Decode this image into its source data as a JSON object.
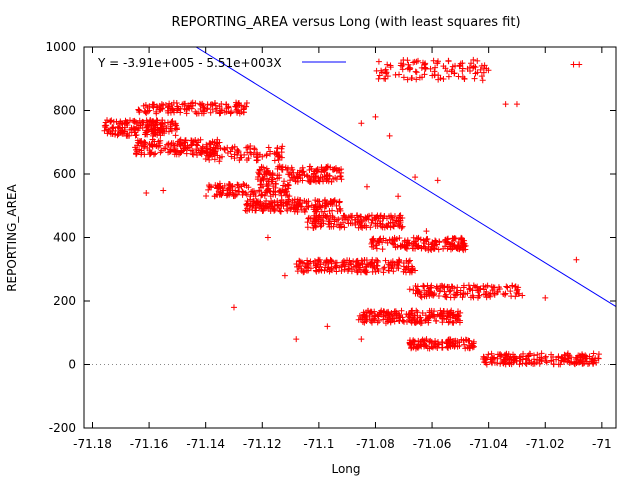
{
  "chart_data": {
    "type": "scatter",
    "title": "REPORTING_AREA versus Long (with least squares fit)",
    "xlabel": "Long",
    "ylabel": "REPORTING_AREA",
    "xlim": [
      -71.183,
      -70.995
    ],
    "ylim": [
      -200,
      1000
    ],
    "x_ticks": [
      -71.18,
      -71.16,
      -71.14,
      -71.12,
      -71.1,
      -71.08,
      -71.06,
      -71.04,
      -71.02,
      -71.0
    ],
    "x_tick_labels": [
      "-71.18",
      "-71.16",
      "-71.14",
      "-71.12",
      "-71.1",
      "-71.08",
      "-71.06",
      "-71.04",
      "-71.02",
      "-71"
    ],
    "y_ticks": [
      -200,
      0,
      200,
      400,
      600,
      800,
      1000
    ],
    "y_tick_labels": [
      "-200",
      "0",
      "200",
      "400",
      "600",
      "800",
      "1000"
    ],
    "zero_line": true,
    "grid": false,
    "colors": {
      "points": "#ff0000",
      "fit_line": "#0000ff",
      "axes": "#000000",
      "zero_line": "#888888"
    },
    "marker": "plus",
    "fit": {
      "label": "Y = -3.91e+005 - 5.51e+003X",
      "intercept": -391000,
      "slope": -5510,
      "x_range": [
        -71.183,
        -70.995
      ],
      "legend_position": "top-left"
    },
    "clusters": [
      {
        "x": [
          -71.176,
          -71.15
        ],
        "y": [
          720,
          770
        ],
        "n": 180
      },
      {
        "x": [
          -71.164,
          -71.125
        ],
        "y": [
          790,
          825
        ],
        "n": 140
      },
      {
        "x": [
          -71.165,
          -71.135
        ],
        "y": [
          660,
          710
        ],
        "n": 160
      },
      {
        "x": [
          -71.142,
          -71.112
        ],
        "y": [
          640,
          690
        ],
        "n": 90
      },
      {
        "x": [
          -71.122,
          -71.092
        ],
        "y": [
          575,
          625
        ],
        "n": 160
      },
      {
        "x": [
          -71.14,
          -71.11
        ],
        "y": [
          530,
          570
        ],
        "n": 130
      },
      {
        "x": [
          -71.126,
          -71.092
        ],
        "y": [
          480,
          520
        ],
        "n": 180
      },
      {
        "x": [
          -71.104,
          -71.07
        ],
        "y": [
          430,
          470
        ],
        "n": 160
      },
      {
        "x": [
          -71.082,
          -71.048
        ],
        "y": [
          360,
          400
        ],
        "n": 160
      },
      {
        "x": [
          -71.108,
          -71.066
        ],
        "y": [
          290,
          330
        ],
        "n": 200
      },
      {
        "x": [
          -71.068,
          -71.028
        ],
        "y": [
          210,
          250
        ],
        "n": 140
      },
      {
        "x": [
          -71.086,
          -71.05
        ],
        "y": [
          130,
          170
        ],
        "n": 200
      },
      {
        "x": [
          -71.068,
          -71.045
        ],
        "y": [
          50,
          80
        ],
        "n": 120
      },
      {
        "x": [
          -71.042,
          -71.001
        ],
        "y": [
          0,
          35
        ],
        "n": 180
      },
      {
        "x": [
          -71.08,
          -71.04
        ],
        "y": [
          895,
          960
        ],
        "n": 110
      }
    ],
    "outliers": [
      {
        "x": -71.161,
        "y": 540
      },
      {
        "x": -71.155,
        "y": 548
      },
      {
        "x": -71.13,
        "y": 180
      },
      {
        "x": -71.118,
        "y": 400
      },
      {
        "x": -71.108,
        "y": 80
      },
      {
        "x": -71.097,
        "y": 120
      },
      {
        "x": -71.112,
        "y": 280
      },
      {
        "x": -71.085,
        "y": 760
      },
      {
        "x": -71.08,
        "y": 780
      },
      {
        "x": -71.075,
        "y": 720
      },
      {
        "x": -71.083,
        "y": 560
      },
      {
        "x": -71.072,
        "y": 530
      },
      {
        "x": -71.066,
        "y": 590
      },
      {
        "x": -71.058,
        "y": 580
      },
      {
        "x": -71.062,
        "y": 420
      },
      {
        "x": -71.02,
        "y": 210
      },
      {
        "x": -71.009,
        "y": 330
      },
      {
        "x": -71.01,
        "y": 945
      },
      {
        "x": -71.008,
        "y": 945
      },
      {
        "x": -71.034,
        "y": 820
      },
      {
        "x": -71.03,
        "y": 820
      },
      {
        "x": -71.085,
        "y": 80
      }
    ]
  }
}
